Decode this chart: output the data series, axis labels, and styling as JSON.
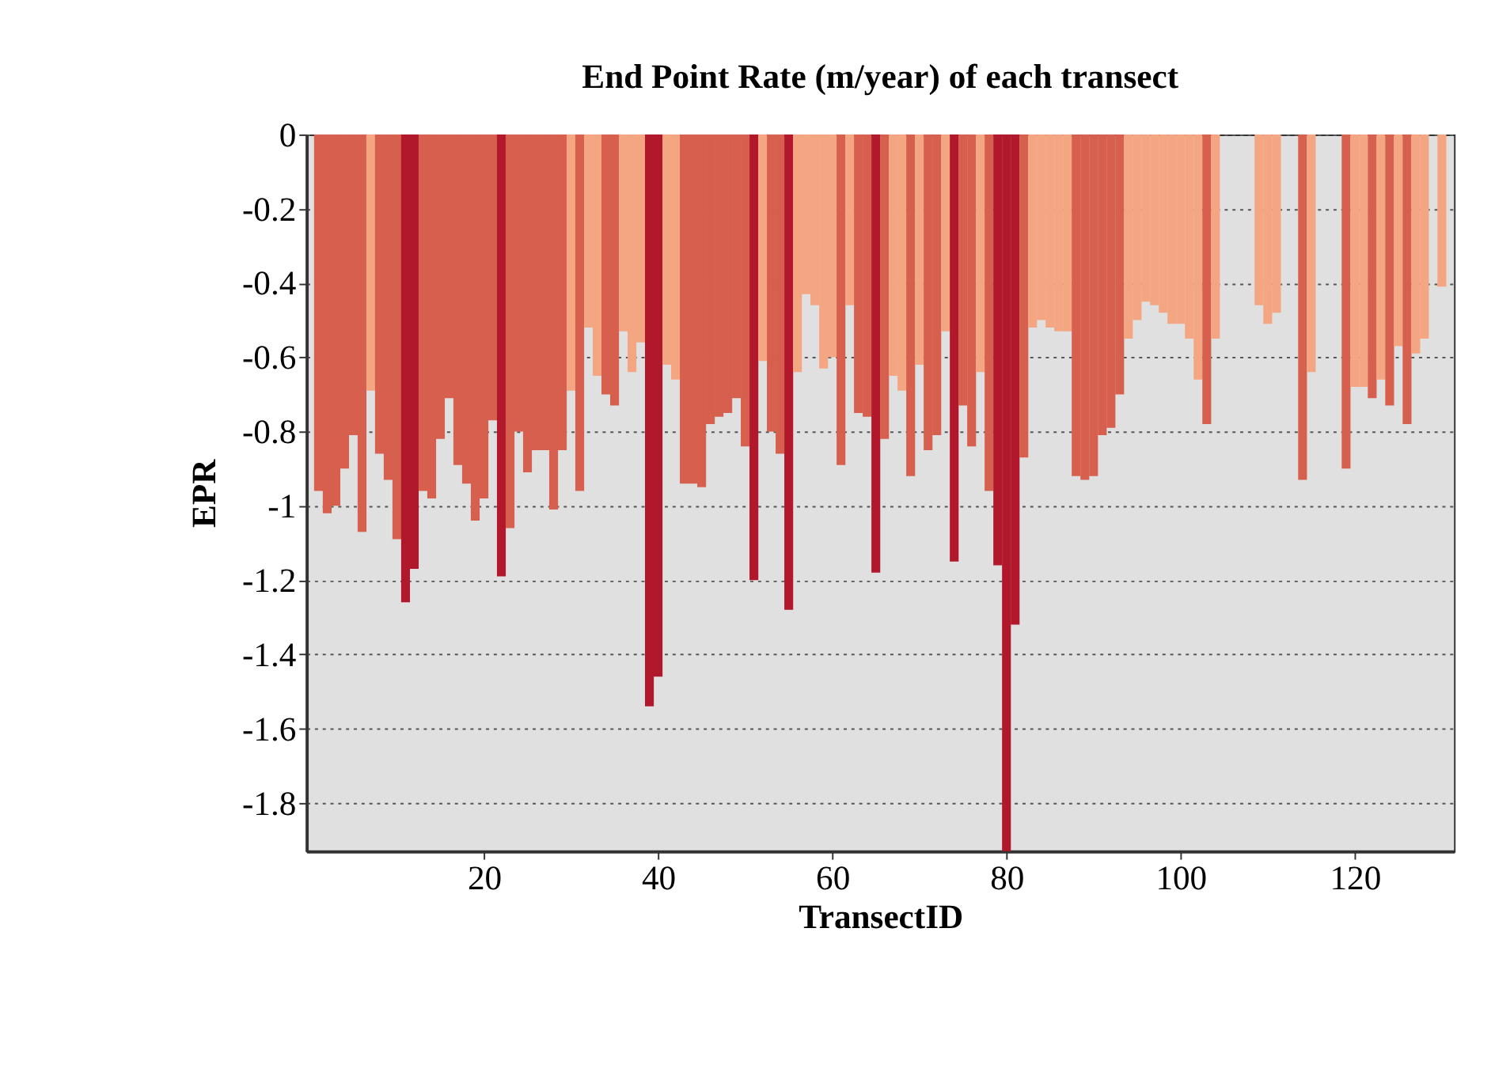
{
  "chart_data": {
    "type": "bar",
    "title": "End Point Rate (m/year) of each transect",
    "xlabel": "TransectID",
    "ylabel": "EPR",
    "x": [
      1,
      2,
      3,
      4,
      5,
      6,
      7,
      8,
      9,
      10,
      11,
      12,
      13,
      14,
      15,
      16,
      17,
      18,
      19,
      20,
      21,
      22,
      23,
      24,
      25,
      26,
      27,
      28,
      29,
      30,
      31,
      32,
      33,
      34,
      35,
      36,
      37,
      38,
      39,
      40,
      41,
      42,
      43,
      44,
      45,
      46,
      47,
      48,
      49,
      50,
      51,
      52,
      53,
      54,
      55,
      56,
      57,
      58,
      59,
      60,
      61,
      62,
      63,
      64,
      65,
      66,
      67,
      68,
      69,
      70,
      71,
      72,
      73,
      74,
      75,
      76,
      77,
      78,
      79,
      80,
      81,
      82,
      83,
      84,
      85,
      86,
      87,
      88,
      89,
      90,
      91,
      92,
      93,
      94,
      95,
      96,
      97,
      98,
      99,
      100,
      101,
      102,
      103,
      104,
      105,
      106,
      107,
      108,
      109,
      110,
      111,
      112,
      113,
      114,
      115,
      116,
      117,
      118,
      119,
      120,
      121,
      122,
      123,
      124,
      125,
      126,
      127,
      128,
      129,
      130
    ],
    "values": [
      -0.96,
      -1.02,
      -1.0,
      -0.9,
      -0.81,
      -1.07,
      -0.69,
      -0.86,
      -0.93,
      -1.09,
      -1.26,
      -1.17,
      -0.96,
      -0.98,
      -0.82,
      -0.71,
      -0.89,
      -0.94,
      -1.04,
      -0.98,
      -0.77,
      -1.19,
      -1.06,
      -0.8,
      -0.91,
      -0.85,
      -0.85,
      -1.01,
      -0.85,
      -0.69,
      -0.96,
      -0.52,
      -0.65,
      -0.7,
      -0.73,
      -0.53,
      -0.64,
      -0.56,
      -1.54,
      -1.46,
      -0.62,
      -0.66,
      -0.94,
      -0.94,
      -0.95,
      -0.78,
      -0.76,
      -0.75,
      -0.71,
      -0.84,
      -1.2,
      -0.61,
      -0.8,
      -0.86,
      -1.28,
      -0.64,
      -0.43,
      -0.46,
      -0.63,
      -0.6,
      -0.89,
      -0.46,
      -0.75,
      -0.76,
      -1.18,
      -0.82,
      -0.65,
      -0.69,
      -0.92,
      -0.62,
      -0.85,
      -0.81,
      -0.53,
      -1.15,
      -0.73,
      -0.84,
      -0.64,
      -0.96,
      -1.16,
      -1.93,
      -1.32,
      -0.87,
      -0.52,
      -0.5,
      -0.52,
      -0.53,
      -0.53,
      -0.92,
      -0.93,
      -0.92,
      -0.81,
      -0.79,
      -0.7,
      -0.55,
      -0.5,
      -0.45,
      -0.46,
      -0.48,
      -0.51,
      -0.51,
      -0.55,
      -0.66,
      -0.78,
      -0.55,
      null,
      null,
      null,
      null,
      -0.46,
      -0.51,
      -0.48,
      null,
      null,
      -0.93,
      -0.64,
      null,
      null,
      null,
      -0.9,
      -0.68,
      -0.68,
      -0.71,
      -0.66,
      -0.73,
      -0.57,
      -0.78,
      -0.59,
      -0.55,
      null,
      -0.41
    ],
    "colors": [
      "#d6604d",
      "#d6604d",
      "#d6604d",
      "#d6604d",
      "#d6604d",
      "#d6604d",
      "#f4a582",
      "#d6604d",
      "#d6604d",
      "#d6604d",
      "#b2182b",
      "#b2182b",
      "#d6604d",
      "#d6604d",
      "#d6604d",
      "#d6604d",
      "#d6604d",
      "#d6604d",
      "#d6604d",
      "#d6604d",
      "#d6604d",
      "#b2182b",
      "#d6604d",
      "#d6604d",
      "#d6604d",
      "#d6604d",
      "#d6604d",
      "#d6604d",
      "#d6604d",
      "#f4a582",
      "#d6604d",
      "#f4a582",
      "#f4a582",
      "#d6604d",
      "#d6604d",
      "#f4a582",
      "#f4a582",
      "#f4a582",
      "#b2182b",
      "#b2182b",
      "#f4a582",
      "#f4a582",
      "#d6604d",
      "#d6604d",
      "#d6604d",
      "#d6604d",
      "#d6604d",
      "#d6604d",
      "#d6604d",
      "#d6604d",
      "#b2182b",
      "#f4a582",
      "#d6604d",
      "#d6604d",
      "#b2182b",
      "#f4a582",
      "#f4a582",
      "#f4a582",
      "#f4a582",
      "#f4a582",
      "#d6604d",
      "#f4a582",
      "#d6604d",
      "#d6604d",
      "#b2182b",
      "#d6604d",
      "#f4a582",
      "#f4a582",
      "#d6604d",
      "#f4a582",
      "#d6604d",
      "#d6604d",
      "#f4a582",
      "#b2182b",
      "#d6604d",
      "#d6604d",
      "#f4a582",
      "#d6604d",
      "#b2182b",
      "#b2182b",
      "#b2182b",
      "#d6604d",
      "#f4a582",
      "#f4a582",
      "#f4a582",
      "#f4a582",
      "#f4a582",
      "#d6604d",
      "#d6604d",
      "#d6604d",
      "#d6604d",
      "#d6604d",
      "#d6604d",
      "#f4a582",
      "#f4a582",
      "#f4a582",
      "#f4a582",
      "#f4a582",
      "#f4a582",
      "#f4a582",
      "#f4a582",
      "#f4a582",
      "#d6604d",
      "#f4a582",
      "#f4a582",
      "#f4a582",
      "#f4a582",
      "#f4a582",
      "#f4a582",
      "#f4a582",
      "#f4a582",
      "#f4a582",
      "#f4a582",
      "#d6604d",
      "#f4a582",
      "#f4a582",
      "#f4a582",
      "#f4a582",
      "#d6604d",
      "#f4a582",
      "#f4a582",
      "#d6604d",
      "#f4a582",
      "#d6604d",
      "#f4a582",
      "#d6604d",
      "#f4a582",
      "#f4a582",
      "#f4a582",
      "#f4a582"
    ],
    "xlim": [
      0.5,
      130.5
    ],
    "xticks": [
      20,
      40,
      60,
      80,
      100,
      120
    ],
    "ylim": [
      -1.93,
      0
    ],
    "yticks": [
      0,
      -0.2,
      -0.4,
      -0.6,
      -0.8,
      -1,
      -1.2,
      -1.4,
      -1.6,
      -1.8
    ],
    "grid": "y"
  }
}
